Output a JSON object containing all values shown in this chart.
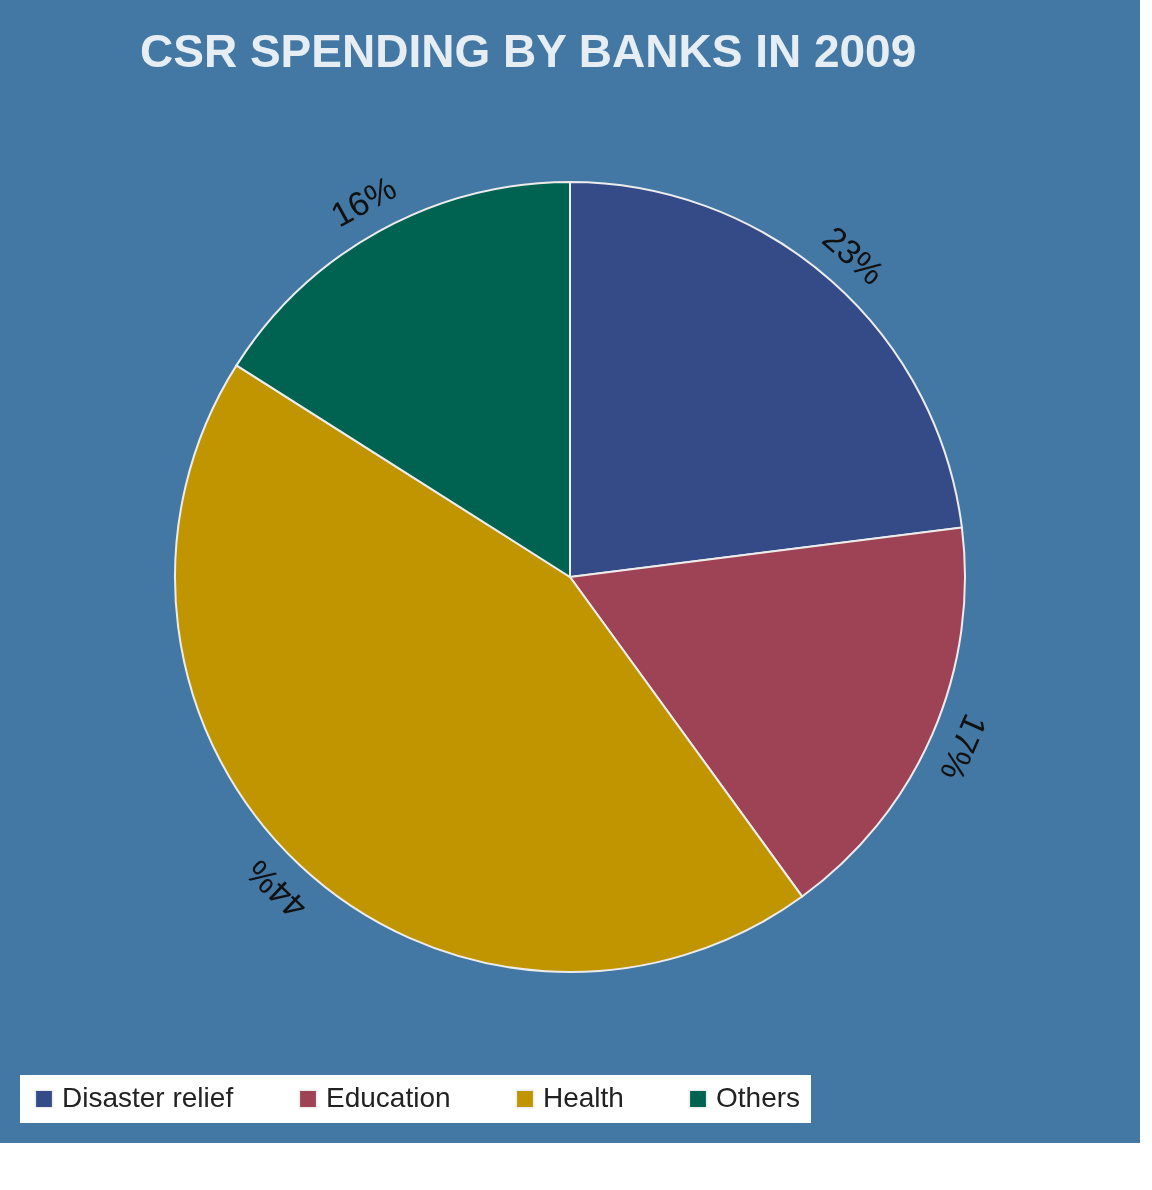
{
  "chart_data": {
    "type": "pie",
    "title": "CSR SPENDING BY BANKS IN 2009",
    "categories": [
      "Disaster relief",
      "Education",
      "Health",
      "Others"
    ],
    "values": [
      23,
      17,
      44,
      16
    ],
    "colors": [
      "#344b87",
      "#9e4256",
      "#c09500",
      "#006352"
    ],
    "value_labels": [
      "23%",
      "17%",
      "44%",
      "16%"
    ],
    "legend": "bottom"
  }
}
